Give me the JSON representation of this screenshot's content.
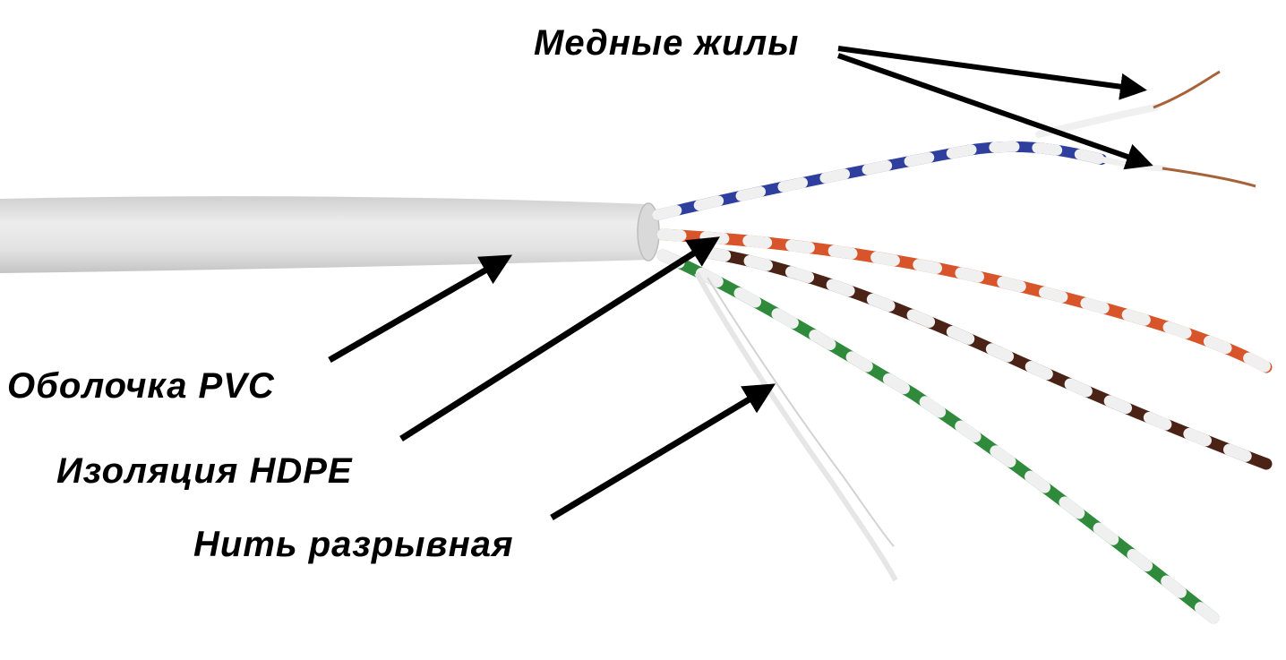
{
  "labels": {
    "copper_cores": "Медные жилы",
    "pvc_sheath": "Оболочка PVC",
    "hdpe_insulation": "Изоляция HDPE",
    "ripcord": "Нить разрывная"
  },
  "colors": {
    "jacket": "#e3e3e3",
    "blue": "#2e3f9e",
    "orange": "#d8542a",
    "brown": "#4a2316",
    "green": "#2f8a3c",
    "white_wire": "#f0f0f0",
    "copper": "#a8623a",
    "arrow": "#000000"
  }
}
